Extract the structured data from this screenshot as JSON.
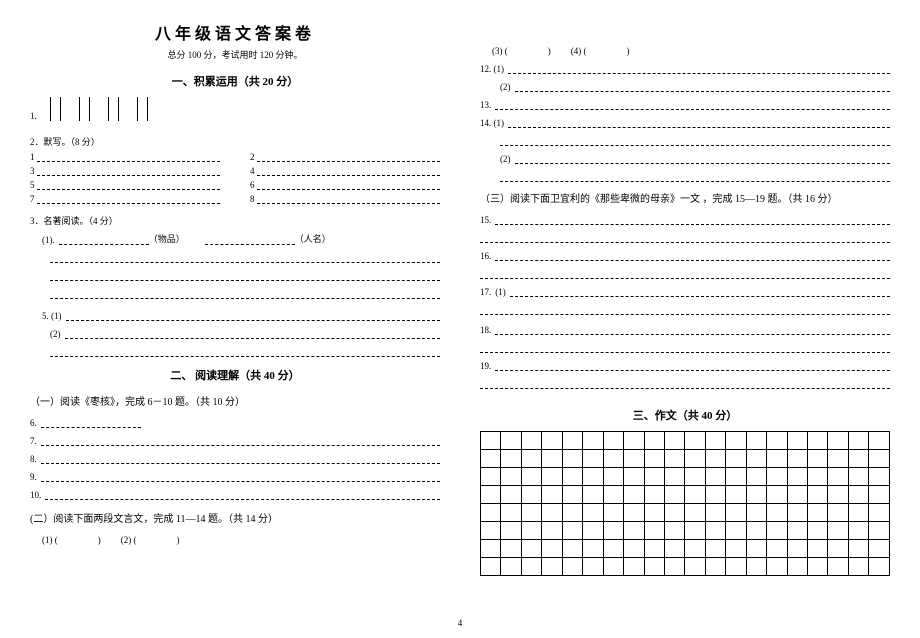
{
  "title": "八年级语文答案卷",
  "subtitle": "总分 100 分，考试用时 120 分钟。",
  "section1": {
    "head": "一、积累运用（共 20 分）",
    "q1_num": "1.",
    "q2_head": "2．默写。（8 分）",
    "fill_nums": [
      "1",
      "2",
      "3",
      "4",
      "5",
      "6",
      "7",
      "8"
    ],
    "q3_head": "3．名著阅读。（4 分）",
    "q3_1_num": "(1).",
    "q3_1_label1": "（物品）",
    "q3_1_label2": "（人名）",
    "q5_1": "5. (1)",
    "q5_2": "(2)"
  },
  "section2": {
    "head": "二、 阅读理解（共 40 分）",
    "sub_a": "（一）阅读《枣核》，完成 6－10 题。（共 10 分）",
    "q6": "6.",
    "q7": "7.",
    "q8": "8.",
    "q9": "9.",
    "q10": "10.",
    "sub_b": "(二）阅读下面两段文言文，完成 11—14 题。（共 14 分）",
    "q11_1": "(1) (",
    "q11_2": "(2) (",
    "close": ")",
    "q11_3": "(3) (",
    "q11_4": "(4) (",
    "q12": "12. (1)",
    "q12_2": "(2)",
    "q13": "13.",
    "q14": "14. (1)",
    "q14_2": "(2)",
    "sub_c": "（三）阅读下面卫宜利的《那些卑微的母亲》一文 ，完成 15—19 题。（共 16 分）",
    "q15": "15.",
    "q16": "16.",
    "q17": "17.",
    "q17_1": "(1)",
    "q18": "18.",
    "q19": "19."
  },
  "section3": {
    "head": "三、作文（共 40 分）",
    "grid_rows": 8,
    "grid_cols": 20
  },
  "page_num": "4",
  "colors": {
    "bg": "#ffffff",
    "text": "#000000",
    "line": "#000000"
  }
}
